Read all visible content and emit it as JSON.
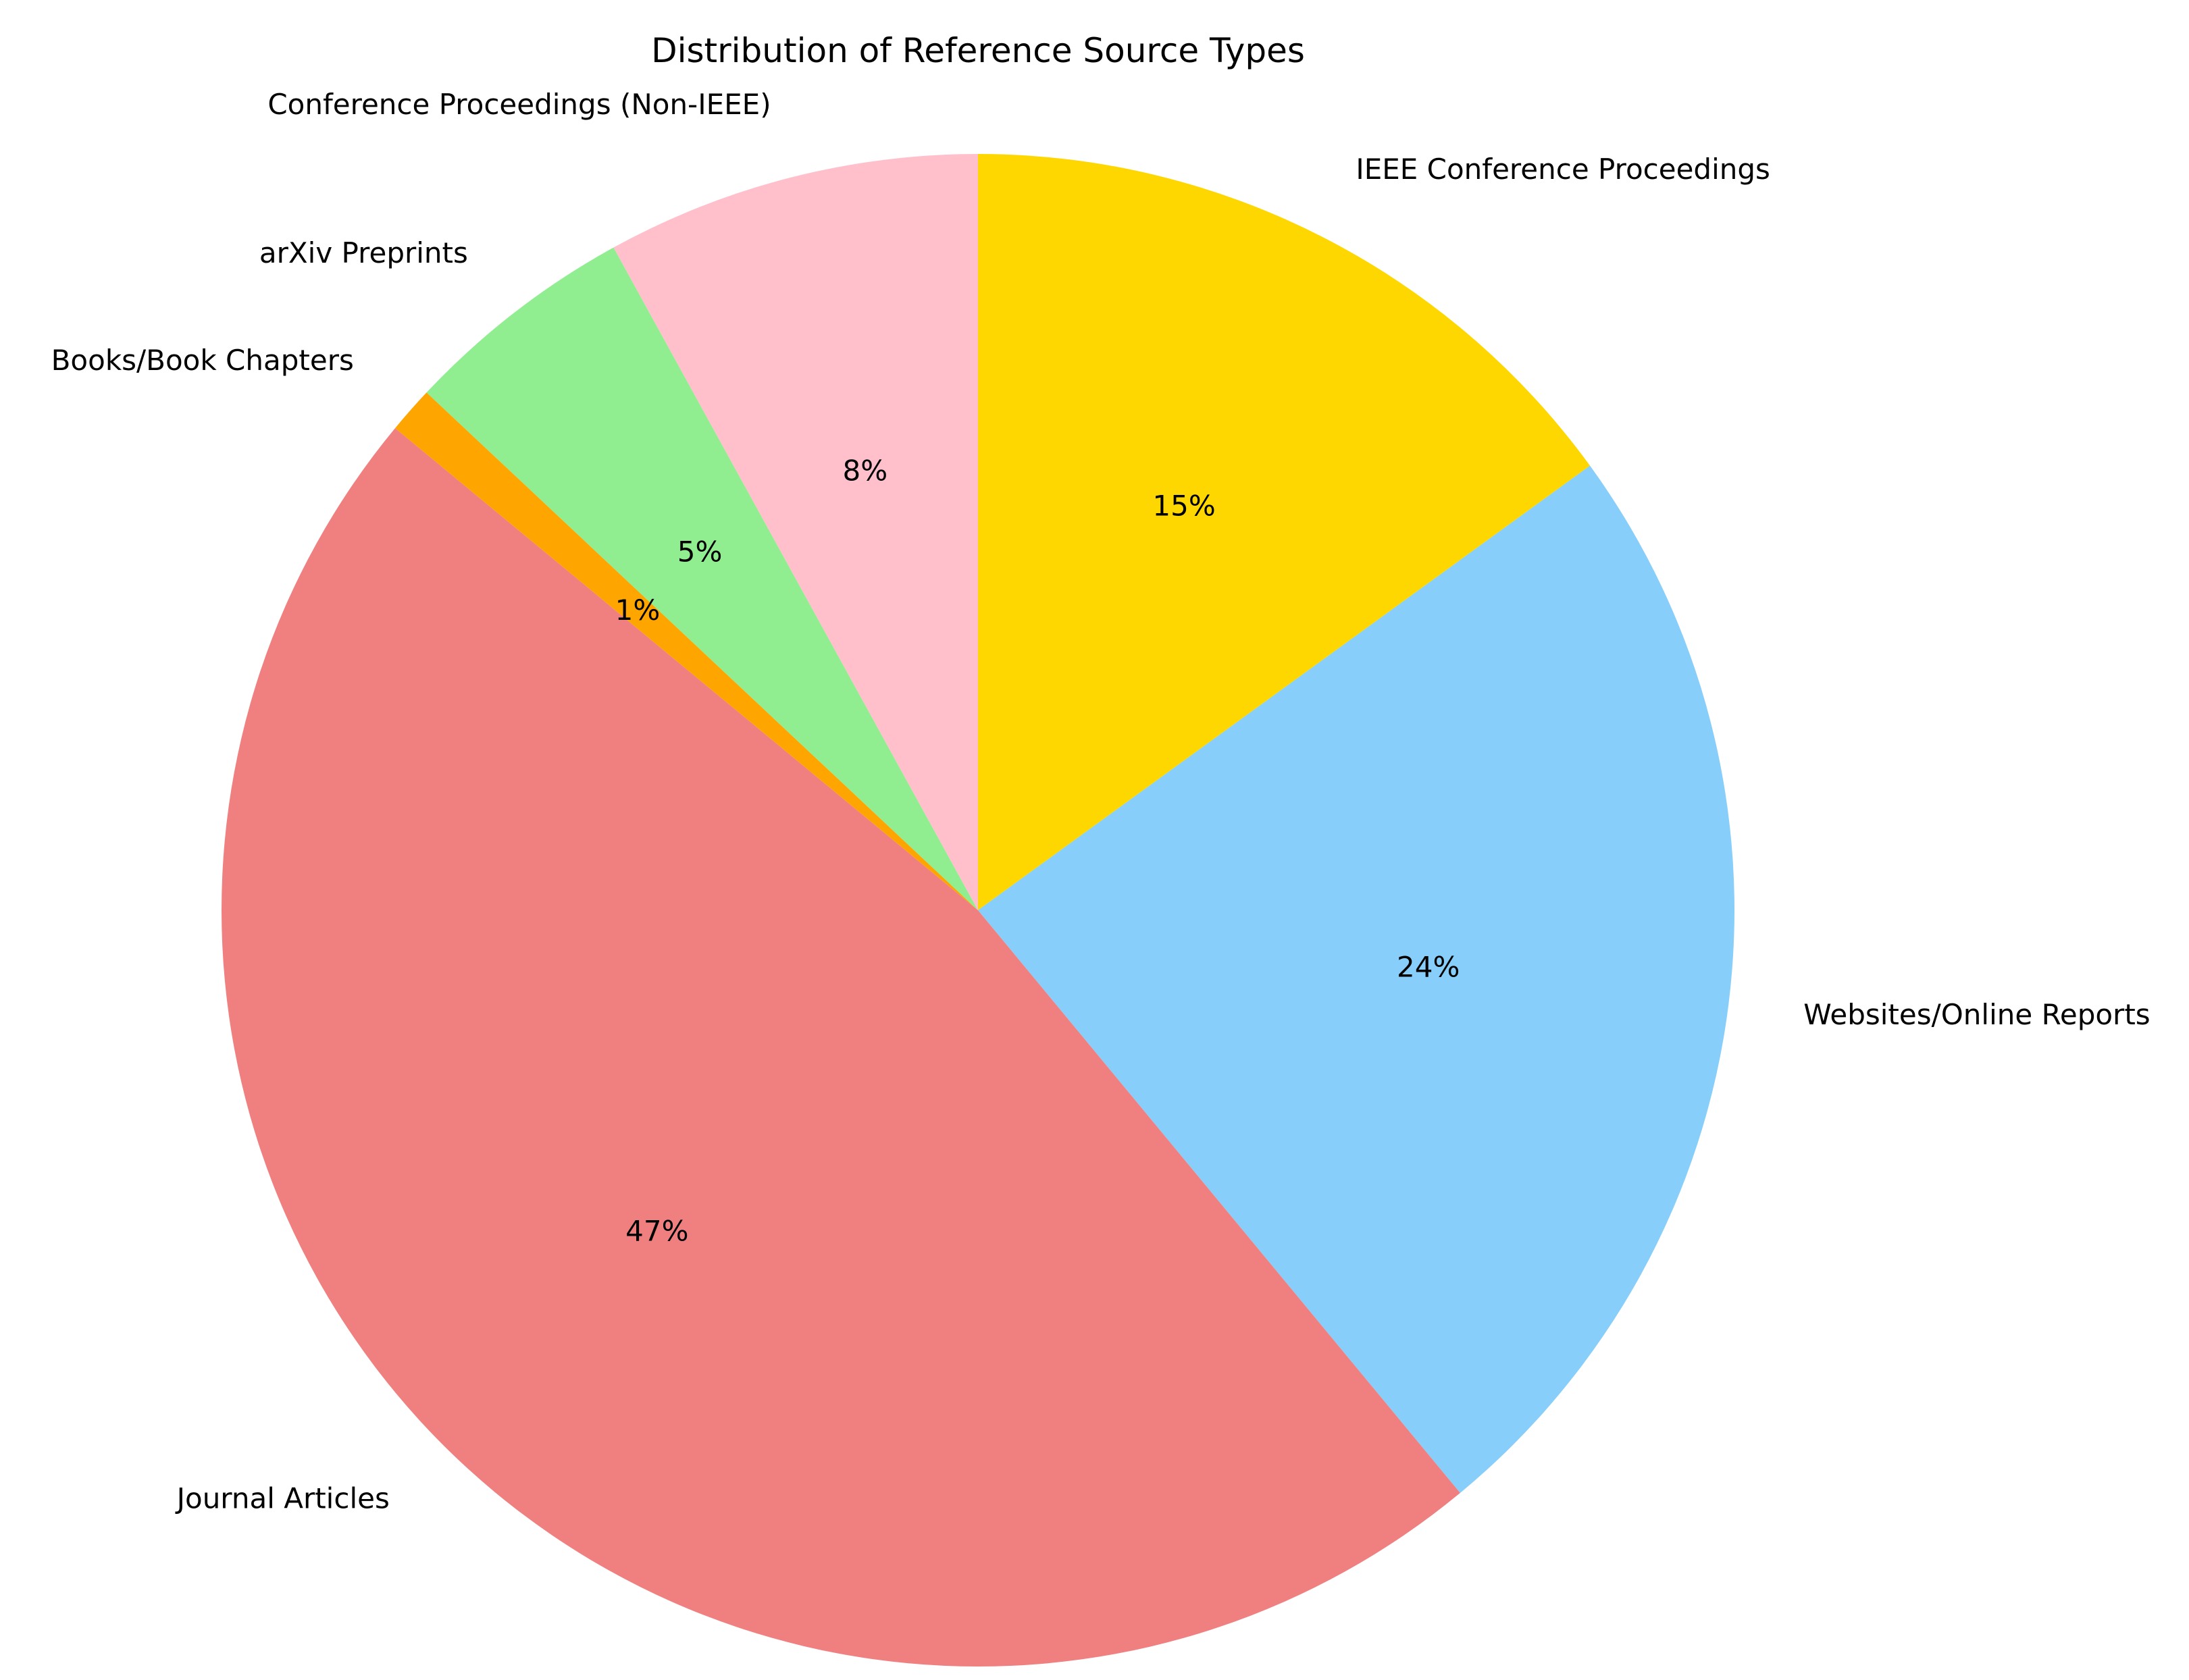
{
  "chart_data": {
    "type": "pie",
    "title": "Distribution of Reference Source Types",
    "slices": [
      {
        "label": "IEEE Conference Proceedings",
        "value": 15,
        "pct_label": "15%",
        "color": "#FFD700"
      },
      {
        "label": "Websites/Online Reports",
        "value": 24,
        "pct_label": "24%",
        "color": "#87CEFA"
      },
      {
        "label": "Journal Articles",
        "value": 47,
        "pct_label": "47%",
        "color": "#F08080"
      },
      {
        "label": "Books/Book Chapters",
        "value": 1,
        "pct_label": "1%",
        "color": "#FFA500"
      },
      {
        "label": "arXiv Preprints",
        "value": 5,
        "pct_label": "5%",
        "color": "#90EE90"
      },
      {
        "label": "Conference Proceedings (Non-IEEE)",
        "value": 8,
        "pct_label": "8%",
        "color": "#FFC0CB"
      }
    ],
    "start_angle": "top",
    "direction": "clockwise",
    "legend": "none"
  }
}
